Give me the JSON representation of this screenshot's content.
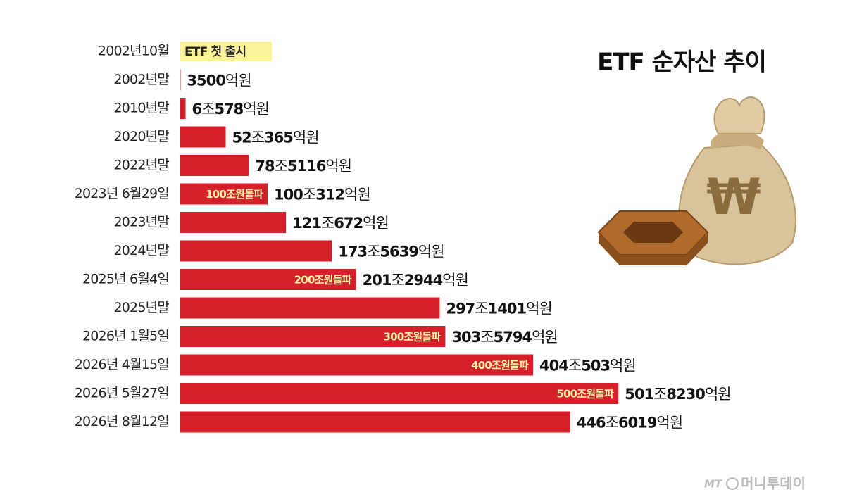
{
  "chart_data": {
    "type": "bar",
    "orientation": "horizontal",
    "title": "ETF 순자산 추이",
    "categories": [
      "2002년10월",
      "2002년말",
      "2010년말",
      "2020년말",
      "2022년말",
      "2023년 6월29일",
      "2023년말",
      "2024년말",
      "2025년 6월4일",
      "2025년말",
      "2026년 1월5일",
      "2026년 4월15일",
      "2026년 5월27일",
      "2026년 8월12일"
    ],
    "values": [
      null,
      3500,
      60578,
      520365,
      785116,
      1000312,
      1210672,
      1735639,
      2012944,
      2971401,
      3035794,
      4040503,
      5018230,
      4466019
    ],
    "value_labels": [
      null,
      "3500억원",
      "6조578억원",
      "52조365억원",
      "78조5116억원",
      "100조312억원",
      "121조672억원",
      "173조5639억원",
      "201조2944억원",
      "297조1401억원",
      "303조5794억원",
      "404조503억원",
      "501조8230억원",
      "446조6019억원"
    ],
    "annotations": [
      "ETF 첫 출시",
      null,
      null,
      null,
      null,
      "100조원돌파",
      null,
      null,
      "200조원돌파",
      null,
      "300조원돌파",
      "400조원돌파",
      "500조원돌파",
      null
    ],
    "color": "#d4202a",
    "xlim": [
      0,
      5000000
    ],
    "source": "머니투데이"
  }
}
